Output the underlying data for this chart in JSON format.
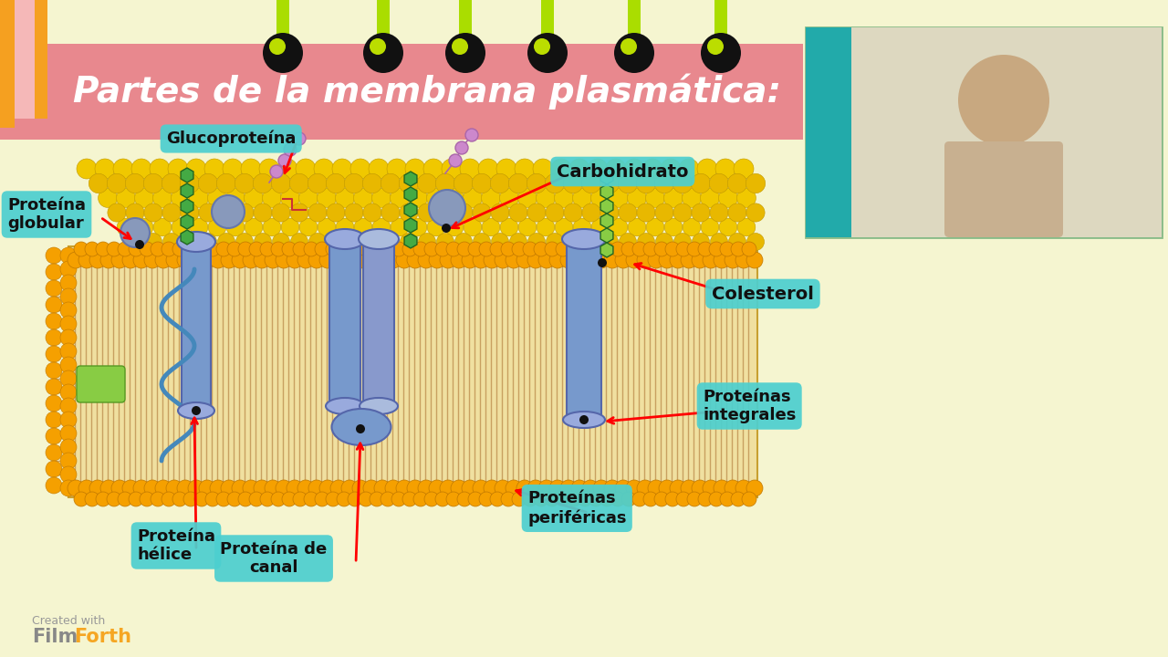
{
  "bg_color": "#f5f5d0",
  "title": "Partes de la membrana plasmática:",
  "title_bg": "#e8888e",
  "title_color": "#ffffff",
  "label_bg": "#4dcfcf",
  "label_color": "#111111",
  "head_color": "#f5a000",
  "head_edge": "#c07800",
  "tail_color": "#8B5A00",
  "top_gold": "#f5c800",
  "top_gold2": "#e8b800",
  "protein_blue": "#6688cc",
  "protein_blue2": "#8899dd",
  "hex_green": "#44aa44",
  "hex_green2": "#88cc44",
  "pink_chain": "#cc88cc",
  "helix_blue": "#4488bb",
  "labels": {
    "glucoproteina": "Glucoproteína",
    "proteina_globular": "Proteína\nglobular",
    "carbohidrato": "Carbohidrato",
    "colesterol": "Colesterol",
    "proteinas_integrales": "Proteínas\nintegrales",
    "proteinas_perifericas": "Proteínas\nperiféricas",
    "proteina_helice": "Proteína\nhélice",
    "proteina_canal": "Proteína de\ncanal"
  }
}
